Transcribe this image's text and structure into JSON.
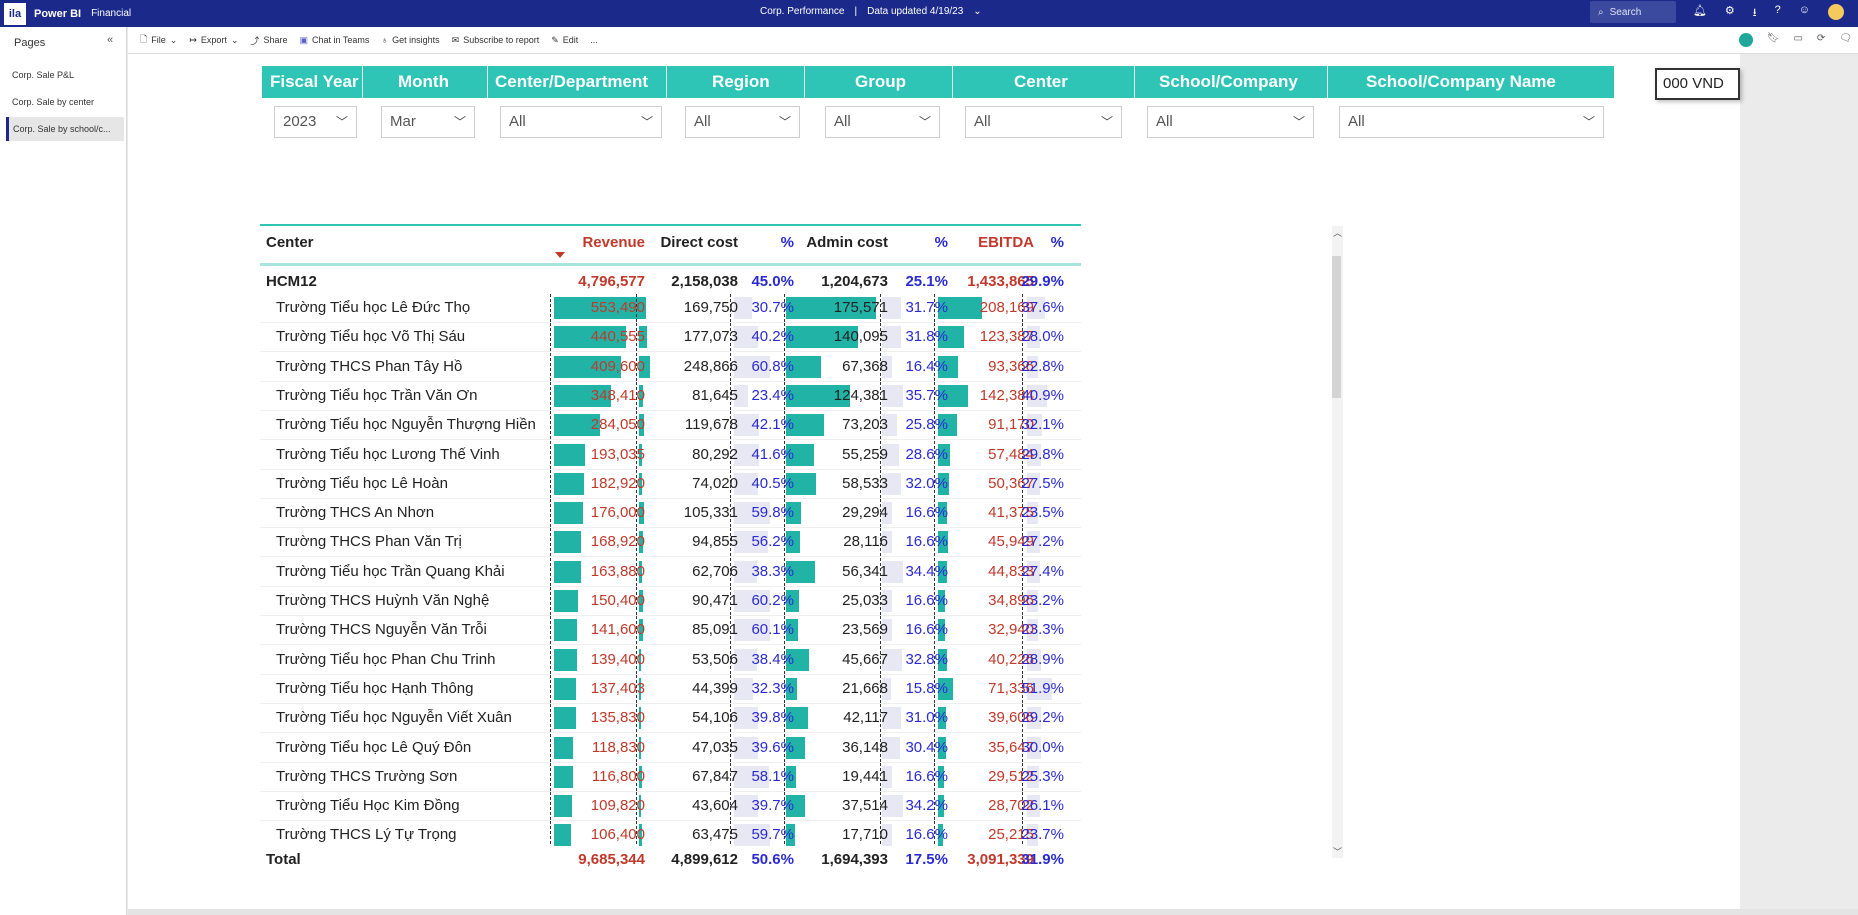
{
  "app": {
    "logo_text": "ila",
    "brand": "Power BI",
    "workspace": "Financial",
    "report_title": "Corp. Performance",
    "separator": "|",
    "data_updated": "Data updated 4/19/23",
    "search_placeholder": "Search"
  },
  "pages_panel": {
    "title": "Pages",
    "items": [
      {
        "label": "Corp. Sale P&L"
      },
      {
        "label": "Corp. Sale by center"
      },
      {
        "label": "Corp. Sale by school/c..."
      }
    ]
  },
  "toolbar": {
    "file": "File",
    "export": "Export",
    "share": "Share",
    "chat": "Chat in Teams",
    "insights": "Get insights",
    "subscribe": "Subscribe to report",
    "edit": "Edit",
    "more": "..."
  },
  "slicers": {
    "headers": [
      "Fiscal Year",
      "Month",
      "Center/Department",
      "Region",
      "Group",
      "Center",
      "School/Company",
      "School/Company Name"
    ],
    "values": [
      "2023",
      "Mar",
      "All",
      "All",
      "All",
      "All",
      "All",
      "All"
    ]
  },
  "unit": "000 VND",
  "table": {
    "columns": {
      "center": "Center",
      "revenue": "Revenue",
      "direct_cost": "Direct cost",
      "direct_pct": "%",
      "admin_cost": "Admin cost",
      "admin_pct": "%",
      "ebitda": "EBITDA",
      "ebitda_pct": "%"
    },
    "group_row": {
      "name": "HCM12",
      "revenue": "4,796,577",
      "direct_cost": "2,158,038",
      "direct_pct": "45.0%",
      "admin_cost": "1,204,673",
      "admin_pct": "25.1%",
      "ebitda": "1,433,865",
      "ebitda_pct": "29.9%"
    },
    "rows": [
      {
        "name": "Trường Tiểu học Lê Đức Thọ",
        "revenue": "553,490",
        "direct_cost": "169,750",
        "direct_pct": "30.7%",
        "admin_cost": "175,571",
        "admin_pct": "31.7%",
        "ebitda": "208,169",
        "ebitda_pct": "37.6%",
        "rev_v": 553490,
        "dc_v": 169750,
        "ac_v": 175571,
        "eb_v": 208169,
        "dp": 30.7,
        "ap": 31.7,
        "ep": 37.6
      },
      {
        "name": "Trường Tiểu học Võ Thị Sáu",
        "revenue": "440,555",
        "direct_cost": "177,073",
        "direct_pct": "40.2%",
        "admin_cost": "140,095",
        "admin_pct": "31.8%",
        "ebitda": "123,387",
        "ebitda_pct": "28.0%",
        "rev_v": 440555,
        "dc_v": 177073,
        "ac_v": 140095,
        "eb_v": 123387,
        "dp": 40.2,
        "ap": 31.8,
        "ep": 28.0
      },
      {
        "name": "Trường THCS Phan Tây Hồ",
        "revenue": "409,600",
        "direct_cost": "248,866",
        "direct_pct": "60.8%",
        "admin_cost": "67,368",
        "admin_pct": "16.4%",
        "ebitda": "93,366",
        "ebitda_pct": "22.8%",
        "rev_v": 409600,
        "dc_v": 248866,
        "ac_v": 67368,
        "eb_v": 93366,
        "dp": 60.8,
        "ap": 16.4,
        "ep": 22.8
      },
      {
        "name": "Trường Tiểu học Trần Văn Ơn",
        "revenue": "348,410",
        "direct_cost": "81,645",
        "direct_pct": "23.4%",
        "admin_cost": "124,381",
        "admin_pct": "35.7%",
        "ebitda": "142,384",
        "ebitda_pct": "40.9%",
        "rev_v": 348410,
        "dc_v": 81645,
        "ac_v": 124381,
        "eb_v": 142384,
        "dp": 23.4,
        "ap": 35.7,
        "ep": 40.9
      },
      {
        "name": "Trường Tiểu học Nguyễn Thượng Hiền",
        "revenue": "284,050",
        "direct_cost": "119,678",
        "direct_pct": "42.1%",
        "admin_cost": "73,203",
        "admin_pct": "25.8%",
        "ebitda": "91,170",
        "ebitda_pct": "32.1%",
        "rev_v": 284050,
        "dc_v": 119678,
        "ac_v": 73203,
        "eb_v": 91170,
        "dp": 42.1,
        "ap": 25.8,
        "ep": 32.1
      },
      {
        "name": "Trường Tiểu học Lương Thế Vinh",
        "revenue": "193,035",
        "direct_cost": "80,292",
        "direct_pct": "41.6%",
        "admin_cost": "55,259",
        "admin_pct": "28.6%",
        "ebitda": "57,484",
        "ebitda_pct": "29.8%",
        "rev_v": 193035,
        "dc_v": 80292,
        "ac_v": 55259,
        "eb_v": 57484,
        "dp": 41.6,
        "ap": 28.6,
        "ep": 29.8
      },
      {
        "name": "Trường Tiểu học Lê Hoàn",
        "revenue": "182,920",
        "direct_cost": "74,020",
        "direct_pct": "40.5%",
        "admin_cost": "58,533",
        "admin_pct": "32.0%",
        "ebitda": "50,367",
        "ebitda_pct": "27.5%",
        "rev_v": 182920,
        "dc_v": 74020,
        "ac_v": 58533,
        "eb_v": 50367,
        "dp": 40.5,
        "ap": 32.0,
        "ep": 27.5
      },
      {
        "name": "Trường THCS An Nhơn",
        "revenue": "176,000",
        "direct_cost": "105,331",
        "direct_pct": "59.8%",
        "admin_cost": "29,294",
        "admin_pct": "16.6%",
        "ebitda": "41,375",
        "ebitda_pct": "23.5%",
        "rev_v": 176000,
        "dc_v": 105331,
        "ac_v": 29294,
        "eb_v": 41375,
        "dp": 59.8,
        "ap": 16.6,
        "ep": 23.5
      },
      {
        "name": "Trường THCS Phan Văn Trị",
        "revenue": "168,920",
        "direct_cost": "94,855",
        "direct_pct": "56.2%",
        "admin_cost": "28,116",
        "admin_pct": "16.6%",
        "ebitda": "45,949",
        "ebitda_pct": "27.2%",
        "rev_v": 168920,
        "dc_v": 94855,
        "ac_v": 28116,
        "eb_v": 45949,
        "dp": 56.2,
        "ap": 16.6,
        "ep": 27.2
      },
      {
        "name": "Trường Tiểu học Trần Quang Khải",
        "revenue": "163,880",
        "direct_cost": "62,706",
        "direct_pct": "38.3%",
        "admin_cost": "56,341",
        "admin_pct": "34.4%",
        "ebitda": "44,833",
        "ebitda_pct": "27.4%",
        "rev_v": 163880,
        "dc_v": 62706,
        "ac_v": 56341,
        "eb_v": 44833,
        "dp": 38.3,
        "ap": 34.4,
        "ep": 27.4
      },
      {
        "name": "Trường THCS Huỳnh Văn Nghệ",
        "revenue": "150,400",
        "direct_cost": "90,471",
        "direct_pct": "60.2%",
        "admin_cost": "25,033",
        "admin_pct": "16.6%",
        "ebitda": "34,896",
        "ebitda_pct": "23.2%",
        "rev_v": 150400,
        "dc_v": 90471,
        "ac_v": 25033,
        "eb_v": 34896,
        "dp": 60.2,
        "ap": 16.6,
        "ep": 23.2
      },
      {
        "name": "Trường THCS Nguyễn Văn Trỗi",
        "revenue": "141,600",
        "direct_cost": "85,091",
        "direct_pct": "60.1%",
        "admin_cost": "23,569",
        "admin_pct": "16.6%",
        "ebitda": "32,940",
        "ebitda_pct": "23.3%",
        "rev_v": 141600,
        "dc_v": 85091,
        "ac_v": 23569,
        "eb_v": 32940,
        "dp": 60.1,
        "ap": 16.6,
        "ep": 23.3
      },
      {
        "name": "Trường Tiểu học Phan Chu Trinh",
        "revenue": "139,400",
        "direct_cost": "53,506",
        "direct_pct": "38.4%",
        "admin_cost": "45,667",
        "admin_pct": "32.8%",
        "ebitda": "40,226",
        "ebitda_pct": "28.9%",
        "rev_v": 139400,
        "dc_v": 53506,
        "ac_v": 45667,
        "eb_v": 40226,
        "dp": 38.4,
        "ap": 32.8,
        "ep": 28.9
      },
      {
        "name": "Trường Tiểu học Hạnh Thông",
        "revenue": "137,403",
        "direct_cost": "44,399",
        "direct_pct": "32.3%",
        "admin_cost": "21,668",
        "admin_pct": "15.8%",
        "ebitda": "71,336",
        "ebitda_pct": "51.9%",
        "rev_v": 137403,
        "dc_v": 44399,
        "ac_v": 21668,
        "eb_v": 71336,
        "dp": 32.3,
        "ap": 15.8,
        "ep": 51.9
      },
      {
        "name": "Trường Tiểu học Nguyễn Viết Xuân",
        "revenue": "135,830",
        "direct_cost": "54,106",
        "direct_pct": "39.8%",
        "admin_cost": "42,117",
        "admin_pct": "31.0%",
        "ebitda": "39,606",
        "ebitda_pct": "29.2%",
        "rev_v": 135830,
        "dc_v": 54106,
        "ac_v": 42117,
        "eb_v": 39606,
        "dp": 39.8,
        "ap": 31.0,
        "ep": 29.2
      },
      {
        "name": "Trường Tiểu học Lê Quý Đôn",
        "revenue": "118,830",
        "direct_cost": "47,035",
        "direct_pct": "39.6%",
        "admin_cost": "36,148",
        "admin_pct": "30.4%",
        "ebitda": "35,647",
        "ebitda_pct": "30.0%",
        "rev_v": 118830,
        "dc_v": 47035,
        "ac_v": 36148,
        "eb_v": 35647,
        "dp": 39.6,
        "ap": 30.4,
        "ep": 30.0
      },
      {
        "name": "Trường THCS Trường Sơn",
        "revenue": "116,800",
        "direct_cost": "67,847",
        "direct_pct": "58.1%",
        "admin_cost": "19,441",
        "admin_pct": "16.6%",
        "ebitda": "29,512",
        "ebitda_pct": "25.3%",
        "rev_v": 116800,
        "dc_v": 67847,
        "ac_v": 19441,
        "eb_v": 29512,
        "dp": 58.1,
        "ap": 16.6,
        "ep": 25.3
      },
      {
        "name": "Trường Tiểu Học Kim Đồng",
        "revenue": "109,820",
        "direct_cost": "43,604",
        "direct_pct": "39.7%",
        "admin_cost": "37,514",
        "admin_pct": "34.2%",
        "ebitda": "28,702",
        "ebitda_pct": "26.1%",
        "rev_v": 109820,
        "dc_v": 43604,
        "ac_v": 37514,
        "eb_v": 28702,
        "dp": 39.7,
        "ap": 34.2,
        "ep": 26.1
      },
      {
        "name": "Trường THCS Lý Tự Trọng",
        "revenue": "106,400",
        "direct_cost": "63,475",
        "direct_pct": "59.7%",
        "admin_cost": "17,710",
        "admin_pct": "16.6%",
        "ebitda": "25,215",
        "ebitda_pct": "23.7%",
        "rev_v": 106400,
        "dc_v": 63475,
        "ac_v": 17710,
        "eb_v": 25215,
        "dp": 59.7,
        "ap": 16.6,
        "ep": 23.7
      }
    ],
    "total_row": {
      "name": "Total",
      "revenue": "9,685,344",
      "direct_cost": "4,899,612",
      "direct_pct": "50.6%",
      "admin_cost": "1,694,393",
      "admin_pct": "17.5%",
      "ebitda": "3,091,339",
      "ebitda_pct": "31.9%"
    }
  },
  "colors": {
    "header_teal": "#2ec4b6",
    "bar_teal": "#21b3a6",
    "revenue_red": "#c0392b",
    "pct_blue": "#2a2ad4",
    "topbar_navy": "#1b2a8a"
  },
  "icons": [
    "search-icon",
    "bell-icon",
    "gear-icon",
    "download-icon",
    "help-icon",
    "feedback-icon",
    "avatar",
    "file-icon",
    "export-icon",
    "share-icon",
    "teams-icon",
    "lightbulb-icon",
    "subscribe-icon",
    "edit-icon",
    "more-icon",
    "refresh-icon",
    "bookmark-icon",
    "view-icon",
    "reload-icon",
    "comment-icon"
  ]
}
